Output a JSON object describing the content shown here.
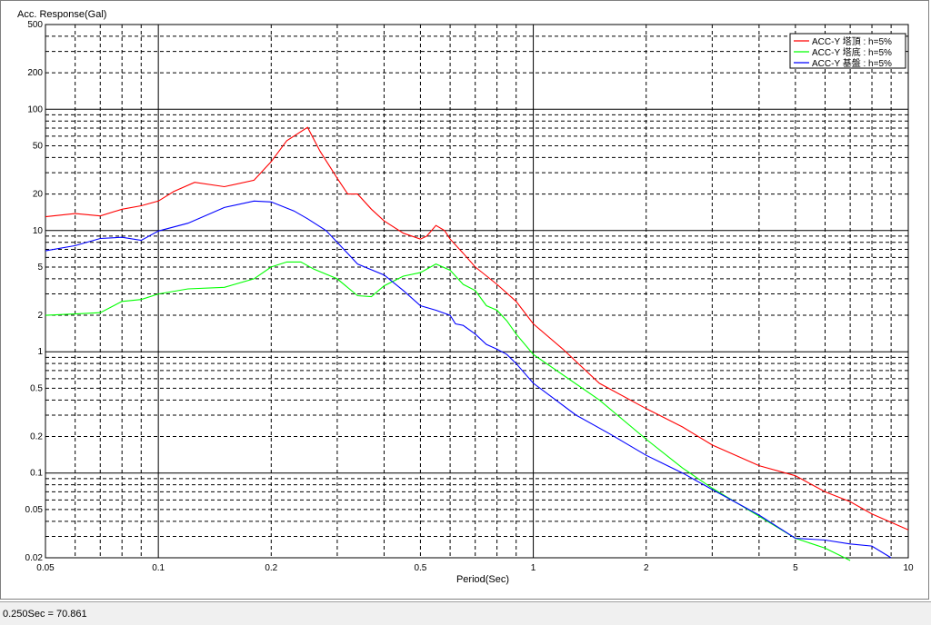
{
  "status_bar": {
    "readout": "0.250Sec = 70.861"
  },
  "chart_data": {
    "type": "line",
    "ylabel": "Acc. Response(Gal)",
    "xlabel": "Period(Sec)",
    "x_scale": "log",
    "y_scale": "log",
    "xlim": [
      0.05,
      10
    ],
    "ylim": [
      0.02,
      500
    ],
    "grid": true,
    "legend_position": "top-right",
    "x_ticks": [
      {
        "value": 0.05,
        "label": "0.05"
      },
      {
        "value": 0.1,
        "label": "0.1"
      },
      {
        "value": 0.2,
        "label": "0.2"
      },
      {
        "value": 0.5,
        "label": "0.5"
      },
      {
        "value": 1,
        "label": "1"
      },
      {
        "value": 2,
        "label": "2"
      },
      {
        "value": 5,
        "label": "5"
      },
      {
        "value": 10,
        "label": "10"
      }
    ],
    "y_ticks": [
      {
        "value": 500,
        "label": "500"
      },
      {
        "value": 200,
        "label": "200"
      },
      {
        "value": 100,
        "label": "100"
      },
      {
        "value": 50,
        "label": "50"
      },
      {
        "value": 20,
        "label": "20"
      },
      {
        "value": 10,
        "label": "10"
      },
      {
        "value": 5,
        "label": "5"
      },
      {
        "value": 2,
        "label": "2"
      },
      {
        "value": 1,
        "label": "1"
      },
      {
        "value": 0.5,
        "label": "0.5"
      },
      {
        "value": 0.2,
        "label": "0.2"
      },
      {
        "value": 0.1,
        "label": "0.1"
      },
      {
        "value": 0.05,
        "label": "0.05"
      },
      {
        "value": 0.02,
        "label": "0.02"
      }
    ],
    "series": [
      {
        "name": "ACC-Y 塔頂 : h=5%",
        "color": "#ff0000",
        "points": [
          [
            0.05,
            13.0
          ],
          [
            0.06,
            13.8
          ],
          [
            0.07,
            13.2
          ],
          [
            0.08,
            15.0
          ],
          [
            0.09,
            16.0
          ],
          [
            0.1,
            17.5
          ],
          [
            0.11,
            21.0
          ],
          [
            0.125,
            25.0
          ],
          [
            0.15,
            23.0
          ],
          [
            0.18,
            26.0
          ],
          [
            0.2,
            37.0
          ],
          [
            0.22,
            55.0
          ],
          [
            0.25,
            70.9
          ],
          [
            0.27,
            45.0
          ],
          [
            0.3,
            27.0
          ],
          [
            0.32,
            20.0
          ],
          [
            0.34,
            20.0
          ],
          [
            0.37,
            15.0
          ],
          [
            0.4,
            12.0
          ],
          [
            0.45,
            9.5
          ],
          [
            0.5,
            8.5
          ],
          [
            0.52,
            9.0
          ],
          [
            0.55,
            11.0
          ],
          [
            0.58,
            10.0
          ],
          [
            0.6,
            8.5
          ],
          [
            0.65,
            6.5
          ],
          [
            0.7,
            5.0
          ],
          [
            0.8,
            3.6
          ],
          [
            0.9,
            2.6
          ],
          [
            1.0,
            1.7
          ],
          [
            1.2,
            1.05
          ],
          [
            1.5,
            0.55
          ],
          [
            2.0,
            0.34
          ],
          [
            2.5,
            0.24
          ],
          [
            3.0,
            0.17
          ],
          [
            4.0,
            0.115
          ],
          [
            5.0,
            0.095
          ],
          [
            6.0,
            0.07
          ],
          [
            7.0,
            0.058
          ],
          [
            8.0,
            0.046
          ],
          [
            10.0,
            0.034
          ]
        ]
      },
      {
        "name": "ACC-Y 塔底 : h=5%",
        "color": "#00ff00",
        "points": [
          [
            0.05,
            2.0
          ],
          [
            0.06,
            2.05
          ],
          [
            0.07,
            2.1
          ],
          [
            0.08,
            2.6
          ],
          [
            0.09,
            2.7
          ],
          [
            0.1,
            3.0
          ],
          [
            0.12,
            3.3
          ],
          [
            0.15,
            3.4
          ],
          [
            0.18,
            4.0
          ],
          [
            0.2,
            5.0
          ],
          [
            0.22,
            5.5
          ],
          [
            0.24,
            5.5
          ],
          [
            0.26,
            4.8
          ],
          [
            0.3,
            4.0
          ],
          [
            0.34,
            2.9
          ],
          [
            0.37,
            2.85
          ],
          [
            0.4,
            3.5
          ],
          [
            0.45,
            4.2
          ],
          [
            0.5,
            4.5
          ],
          [
            0.55,
            5.3
          ],
          [
            0.6,
            4.7
          ],
          [
            0.65,
            3.6
          ],
          [
            0.7,
            3.2
          ],
          [
            0.75,
            2.4
          ],
          [
            0.8,
            2.2
          ],
          [
            0.85,
            1.8
          ],
          [
            0.9,
            1.4
          ],
          [
            1.0,
            0.95
          ],
          [
            1.5,
            0.4
          ],
          [
            2.0,
            0.19
          ],
          [
            2.5,
            0.11
          ],
          [
            3.0,
            0.075
          ],
          [
            4.0,
            0.044
          ],
          [
            5.0,
            0.029
          ],
          [
            6.0,
            0.024
          ],
          [
            7.0,
            0.019
          ]
        ]
      },
      {
        "name": "ACC-Y 基盤 : h=5%",
        "color": "#0000ff",
        "points": [
          [
            0.05,
            6.8
          ],
          [
            0.06,
            7.5
          ],
          [
            0.07,
            8.6
          ],
          [
            0.08,
            8.8
          ],
          [
            0.09,
            8.3
          ],
          [
            0.1,
            9.9
          ],
          [
            0.12,
            11.5
          ],
          [
            0.15,
            15.5
          ],
          [
            0.18,
            17.5
          ],
          [
            0.2,
            17.2
          ],
          [
            0.23,
            14.5
          ],
          [
            0.25,
            12.5
          ],
          [
            0.28,
            10.0
          ],
          [
            0.3,
            8.0
          ],
          [
            0.34,
            5.3
          ],
          [
            0.4,
            4.3
          ],
          [
            0.45,
            3.2
          ],
          [
            0.5,
            2.4
          ],
          [
            0.55,
            2.2
          ],
          [
            0.6,
            2.0
          ],
          [
            0.62,
            1.7
          ],
          [
            0.65,
            1.65
          ],
          [
            0.7,
            1.4
          ],
          [
            0.75,
            1.15
          ],
          [
            0.8,
            1.05
          ],
          [
            0.85,
            0.95
          ],
          [
            0.9,
            0.8
          ],
          [
            1.0,
            0.55
          ],
          [
            1.3,
            0.3
          ],
          [
            1.6,
            0.21
          ],
          [
            2.0,
            0.14
          ],
          [
            2.5,
            0.1
          ],
          [
            3.0,
            0.073
          ],
          [
            4.0,
            0.045
          ],
          [
            5.0,
            0.029
          ],
          [
            6.0,
            0.028
          ],
          [
            7.0,
            0.026
          ],
          [
            8.0,
            0.025
          ],
          [
            9.0,
            0.02
          ]
        ]
      }
    ]
  }
}
